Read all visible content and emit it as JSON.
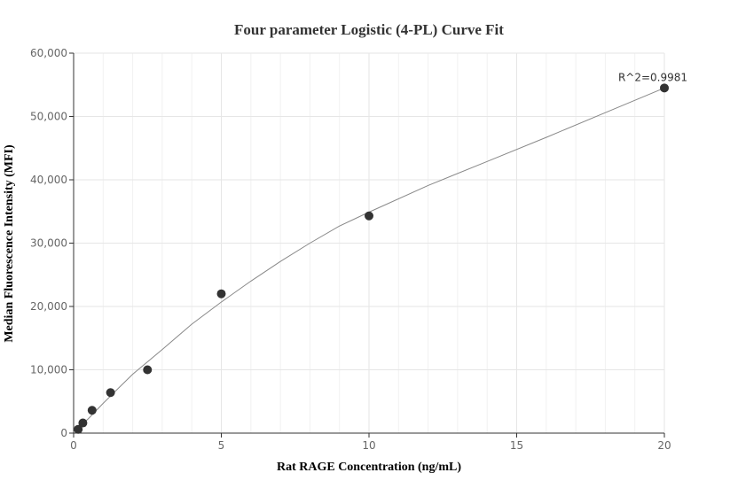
{
  "chart_data": {
    "type": "scatter",
    "title": "Four parameter Logistic (4-PL) Curve Fit",
    "xlabel": "Rat RAGE Concentration (ng/mL)",
    "ylabel": "Median Fluorescence Intensity (MFI)",
    "xlim": [
      0,
      20
    ],
    "ylim": [
      0,
      60000
    ],
    "x_ticks": [
      0,
      5,
      10,
      15,
      20
    ],
    "x_tick_labels": [
      "0",
      "5",
      "10",
      "15",
      "20"
    ],
    "y_ticks": [
      0,
      10000,
      20000,
      30000,
      40000,
      50000,
      60000
    ],
    "y_tick_labels": [
      "0",
      "10,000",
      "20,000",
      "30,000",
      "40,000",
      "50,000",
      "60,000"
    ],
    "grid": true,
    "points": [
      {
        "x": 0.156,
        "y": 600
      },
      {
        "x": 0.3125,
        "y": 1600
      },
      {
        "x": 0.625,
        "y": 3600
      },
      {
        "x": 1.25,
        "y": 6400
      },
      {
        "x": 2.5,
        "y": 10000
      },
      {
        "x": 5,
        "y": 22000
      },
      {
        "x": 10,
        "y": 34300
      },
      {
        "x": 20,
        "y": 54500
      }
    ],
    "fit_curve": [
      {
        "x": 0,
        "y": 200
      },
      {
        "x": 0.25,
        "y": 1200
      },
      {
        "x": 0.5,
        "y": 2300
      },
      {
        "x": 1,
        "y": 4700
      },
      {
        "x": 1.5,
        "y": 7000
      },
      {
        "x": 2,
        "y": 9300
      },
      {
        "x": 3,
        "y": 13200
      },
      {
        "x": 4,
        "y": 17200
      },
      {
        "x": 5,
        "y": 20700
      },
      {
        "x": 6,
        "y": 24000
      },
      {
        "x": 7,
        "y": 27100
      },
      {
        "x": 8,
        "y": 30000
      },
      {
        "x": 9,
        "y": 32700
      },
      {
        "x": 10,
        "y": 34900
      },
      {
        "x": 12,
        "y": 39100
      },
      {
        "x": 14,
        "y": 42900
      },
      {
        "x": 16,
        "y": 46700
      },
      {
        "x": 18,
        "y": 50600
      },
      {
        "x": 20,
        "y": 54500
      }
    ],
    "annotations": [
      {
        "text": "R^2=0.9981",
        "x": 20,
        "y": 54500
      }
    ],
    "colors": {
      "point": "#333333",
      "curve": "#888888",
      "grid": "#e6e6e6",
      "axis": "#333333"
    }
  }
}
